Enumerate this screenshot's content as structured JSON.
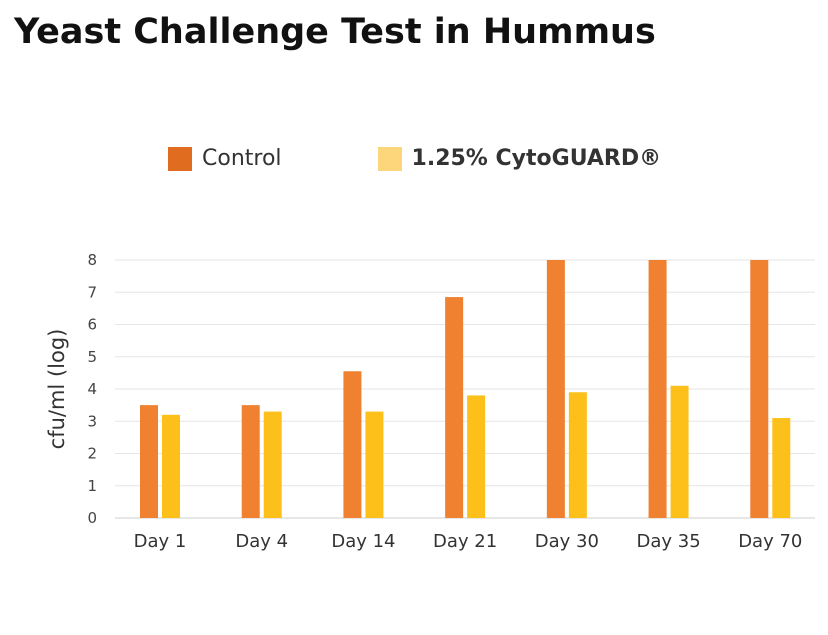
{
  "chart_data": {
    "type": "bar",
    "title": "Yeast Challenge Test in Hummus",
    "xlabel": "",
    "ylabel": "cfu/ml (log)",
    "ylim": [
      0,
      8
    ],
    "yticks": [
      0,
      1,
      2,
      3,
      4,
      5,
      6,
      7,
      8
    ],
    "grid": true,
    "legend_position": "top",
    "categories": [
      "Day 1",
      "Day 4",
      "Day 14",
      "Day 21",
      "Day 30",
      "Day 35",
      "Day 70"
    ],
    "series": [
      {
        "name": "Control",
        "color": "#ef8130",
        "legend_color": "#e06c1f",
        "values": [
          3.5,
          3.5,
          4.55,
          6.85,
          8,
          8,
          8
        ]
      },
      {
        "name": "1.25% CytoGUARD®",
        "color": "#fdc01a",
        "legend_color": "#fdd57a",
        "values": [
          3.2,
          3.3,
          3.3,
          3.8,
          3.9,
          4.1,
          3.1
        ]
      }
    ]
  }
}
